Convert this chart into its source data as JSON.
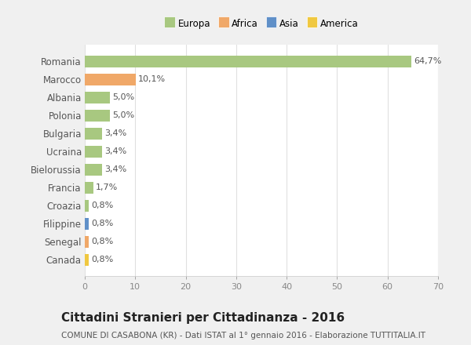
{
  "categories": [
    "Romania",
    "Marocco",
    "Albania",
    "Polonia",
    "Bulgaria",
    "Ucraina",
    "Bielorussia",
    "Francia",
    "Croazia",
    "Filippine",
    "Senegal",
    "Canada"
  ],
  "values": [
    64.7,
    10.1,
    5.0,
    5.0,
    3.4,
    3.4,
    3.4,
    1.7,
    0.8,
    0.8,
    0.8,
    0.8
  ],
  "labels": [
    "64,7%",
    "10,1%",
    "5,0%",
    "5,0%",
    "3,4%",
    "3,4%",
    "3,4%",
    "1,7%",
    "0,8%",
    "0,8%",
    "0,8%",
    "0,8%"
  ],
  "colors": [
    "#a8c880",
    "#f0a868",
    "#a8c880",
    "#a8c880",
    "#a8c880",
    "#a8c880",
    "#a8c880",
    "#a8c880",
    "#a8c880",
    "#6090c8",
    "#f0a868",
    "#f0c840"
  ],
  "legend_labels": [
    "Europa",
    "Africa",
    "Asia",
    "America"
  ],
  "legend_colors": [
    "#a8c880",
    "#f0a868",
    "#6090c8",
    "#f0c840"
  ],
  "xlim": [
    0,
    70
  ],
  "xticks": [
    0,
    10,
    20,
    30,
    40,
    50,
    60,
    70
  ],
  "title": "Cittadini Stranieri per Cittadinanza - 2016",
  "subtitle": "COMUNE DI CASABONA (KR) - Dati ISTAT al 1° gennaio 2016 - Elaborazione TUTTITALIA.IT",
  "fig_bg_color": "#f0f0f0",
  "ax_bg_color": "#ffffff",
  "grid_color": "#e0e0e0",
  "label_fontsize": 8.0,
  "ytick_fontsize": 8.5,
  "xtick_fontsize": 8.0,
  "title_fontsize": 11,
  "subtitle_fontsize": 7.5,
  "bar_height": 0.65
}
